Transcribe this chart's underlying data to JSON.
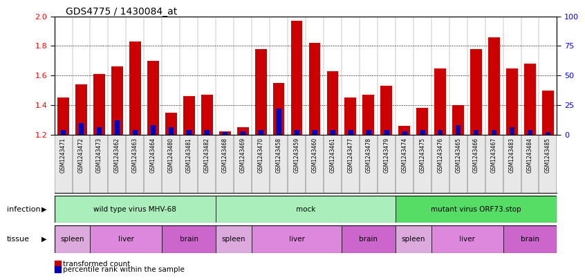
{
  "title": "GDS4775 / 1430084_at",
  "samples": [
    "GSM1243471",
    "GSM1243472",
    "GSM1243473",
    "GSM1243462",
    "GSM1243463",
    "GSM1243464",
    "GSM1243480",
    "GSM1243481",
    "GSM1243482",
    "GSM1243468",
    "GSM1243469",
    "GSM1243470",
    "GSM1243458",
    "GSM1243459",
    "GSM1243460",
    "GSM1243461",
    "GSM1243477",
    "GSM1243478",
    "GSM1243479",
    "GSM1243474",
    "GSM1243475",
    "GSM1243476",
    "GSM1243465",
    "GSM1243466",
    "GSM1243467",
    "GSM1243483",
    "GSM1243484",
    "GSM1243485"
  ],
  "red_values": [
    1.45,
    1.54,
    1.61,
    1.66,
    1.83,
    1.7,
    1.35,
    1.46,
    1.47,
    1.22,
    1.25,
    1.78,
    1.55,
    1.97,
    1.82,
    1.63,
    1.45,
    1.47,
    1.53,
    1.26,
    1.38,
    1.65,
    1.4,
    1.78,
    1.86,
    1.65,
    1.68,
    1.5
  ],
  "blue_values": [
    4,
    10,
    6,
    12,
    4,
    8,
    6,
    4,
    4,
    2,
    3,
    4,
    22,
    4,
    4,
    4,
    4,
    4,
    4,
    3,
    4,
    4,
    8,
    4,
    4,
    6,
    4,
    2
  ],
  "ymin": 1.2,
  "ymax": 2.0,
  "yticks_left": [
    1.2,
    1.4,
    1.6,
    1.8,
    2.0
  ],
  "yticks_right": [
    0,
    25,
    50,
    75,
    100
  ],
  "bar_color_red": "#cc0000",
  "bar_color_blue": "#0000bb",
  "infection_groups": [
    {
      "label": "wild type virus MHV-68",
      "start": 0,
      "end": 9,
      "color": "#aaeebb"
    },
    {
      "label": "mock",
      "start": 9,
      "end": 19,
      "color": "#aaeebb"
    },
    {
      "label": "mutant virus ORF73.stop",
      "start": 19,
      "end": 28,
      "color": "#55dd66"
    }
  ],
  "tissue_groups": [
    {
      "label": "spleen",
      "start": 0,
      "end": 2,
      "color": "#ddaadd"
    },
    {
      "label": "liver",
      "start": 2,
      "end": 6,
      "color": "#dd88dd"
    },
    {
      "label": "brain",
      "start": 6,
      "end": 9,
      "color": "#cc66cc"
    },
    {
      "label": "spleen",
      "start": 9,
      "end": 11,
      "color": "#ddaadd"
    },
    {
      "label": "liver",
      "start": 11,
      "end": 16,
      "color": "#dd88dd"
    },
    {
      "label": "brain",
      "start": 16,
      "end": 19,
      "color": "#cc66cc"
    },
    {
      "label": "spleen",
      "start": 19,
      "end": 21,
      "color": "#ddaadd"
    },
    {
      "label": "liver",
      "start": 21,
      "end": 25,
      "color": "#dd88dd"
    },
    {
      "label": "brain",
      "start": 25,
      "end": 28,
      "color": "#cc66cc"
    }
  ],
  "legend_red": "transformed count",
  "legend_blue": "percentile rank within the sample",
  "infection_label": "infection",
  "tissue_label": "tissue",
  "xticklabel_bg": "#e8e8e8"
}
